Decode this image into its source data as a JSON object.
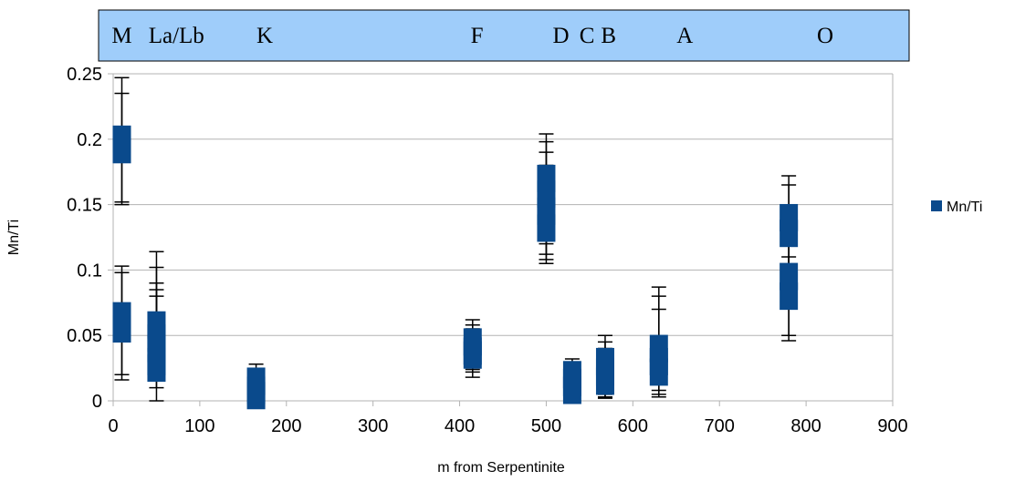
{
  "chart_data": {
    "type": "scatter",
    "title": "",
    "xlabel": "m from Serpentinite",
    "ylabel": "Mn/Ti",
    "xlim": [
      0,
      900
    ],
    "ylim": [
      0,
      0.25
    ],
    "x_ticks": [
      0,
      100,
      200,
      300,
      400,
      500,
      600,
      700,
      800,
      900
    ],
    "x_tick_labels": [
      "0",
      "100",
      "200",
      "300",
      "400",
      "500",
      "600",
      "700",
      "800",
      "900"
    ],
    "y_ticks": [
      0,
      0.05,
      0.1,
      0.15,
      0.2,
      0.25
    ],
    "y_tick_labels": [
      "0",
      "0.05",
      "0.1",
      "0.15",
      "0.2",
      "0.25"
    ],
    "grid": "horizontal",
    "legend_position": "right",
    "series": [
      {
        "name": "Mn/Ti",
        "color": "#0a4a8c",
        "marker": "filled-square",
        "error_bars": "vertical",
        "points": [
          {
            "x": 10,
            "y": 0.2,
            "low": 0.15,
            "high": 0.247
          },
          {
            "x": 10,
            "y": 0.192,
            "low": 0.152,
            "high": 0.235
          },
          {
            "x": 10,
            "y": 0.065,
            "low": 0.016,
            "high": 0.103
          },
          {
            "x": 10,
            "y": 0.055,
            "low": 0.02,
            "high": 0.098
          },
          {
            "x": 50,
            "y": 0.058,
            "low": 0.0,
            "high": 0.114
          },
          {
            "x": 50,
            "y": 0.048,
            "low": 0.01,
            "high": 0.102
          },
          {
            "x": 50,
            "y": 0.04,
            "low": 0.022,
            "high": 0.09
          },
          {
            "x": 50,
            "y": 0.03,
            "low": 0.025,
            "high": 0.085
          },
          {
            "x": 50,
            "y": 0.025,
            "low": 0.028,
            "high": 0.08
          },
          {
            "x": 165,
            "y": 0.015,
            "low": 0.0,
            "high": 0.028
          },
          {
            "x": 165,
            "y": 0.008,
            "low": 0.001,
            "high": 0.022
          },
          {
            "x": 165,
            "y": 0.004,
            "low": 0.0,
            "high": 0.02
          },
          {
            "x": 415,
            "y": 0.045,
            "low": 0.018,
            "high": 0.062
          },
          {
            "x": 415,
            "y": 0.038,
            "low": 0.022,
            "high": 0.058
          },
          {
            "x": 415,
            "y": 0.035,
            "low": 0.024,
            "high": 0.055
          },
          {
            "x": 500,
            "y": 0.17,
            "low": 0.12,
            "high": 0.204
          },
          {
            "x": 500,
            "y": 0.158,
            "low": 0.112,
            "high": 0.198
          },
          {
            "x": 500,
            "y": 0.145,
            "low": 0.108,
            "high": 0.19
          },
          {
            "x": 500,
            "y": 0.132,
            "low": 0.105,
            "high": 0.18
          },
          {
            "x": 530,
            "y": 0.02,
            "low": 0.0,
            "high": 0.032
          },
          {
            "x": 530,
            "y": 0.014,
            "low": 0.002,
            "high": 0.028
          },
          {
            "x": 530,
            "y": 0.008,
            "low": 0.0,
            "high": 0.025
          },
          {
            "x": 568,
            "y": 0.03,
            "low": 0.003,
            "high": 0.05
          },
          {
            "x": 568,
            "y": 0.022,
            "low": 0.005,
            "high": 0.045
          },
          {
            "x": 568,
            "y": 0.015,
            "low": 0.002,
            "high": 0.04
          },
          {
            "x": 630,
            "y": 0.04,
            "low": 0.005,
            "high": 0.087
          },
          {
            "x": 630,
            "y": 0.03,
            "low": 0.008,
            "high": 0.08
          },
          {
            "x": 630,
            "y": 0.022,
            "low": 0.003,
            "high": 0.07
          },
          {
            "x": 780,
            "y": 0.14,
            "low": 0.09,
            "high": 0.172
          },
          {
            "x": 780,
            "y": 0.128,
            "low": 0.1,
            "high": 0.165
          },
          {
            "x": 780,
            "y": 0.095,
            "low": 0.046,
            "high": 0.12
          },
          {
            "x": 780,
            "y": 0.08,
            "low": 0.05,
            "high": 0.11
          }
        ]
      }
    ],
    "annotations": {
      "banner_color": "#9fcdfa",
      "labels": [
        {
          "text": "M",
          "x": 10
        },
        {
          "text": "La/Lb",
          "x": 73
        },
        {
          "text": "K",
          "x": 175
        },
        {
          "text": "F",
          "x": 420
        },
        {
          "text": "D",
          "x": 517
        },
        {
          "text": "C",
          "x": 547
        },
        {
          "text": "B",
          "x": 572
        },
        {
          "text": "A",
          "x": 660
        },
        {
          "text": "O",
          "x": 822
        }
      ]
    }
  }
}
